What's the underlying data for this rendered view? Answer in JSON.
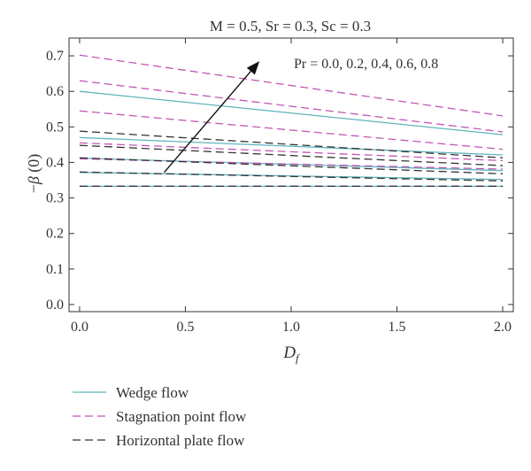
{
  "chart_data": {
    "type": "line",
    "title": "M = 0.5, Sr = 0.3, Sc = 0.3",
    "xlabel": "D",
    "xlabel_sub": "f",
    "ylabel_prefix": "−",
    "ylabel_symbol": "β",
    "ylabel_suffix": " (0)",
    "xlim": [
      -0.05,
      2.05
    ],
    "ylim": [
      -0.02,
      0.75
    ],
    "xticks": [
      "0.0",
      "0.5",
      "1.0",
      "1.5",
      "2.0"
    ],
    "yticks": [
      "0.0",
      "0.1",
      "0.2",
      "0.3",
      "0.4",
      "0.5",
      "0.6",
      "0.7"
    ],
    "grid": false,
    "legend_position": "bottom",
    "annotation": {
      "text": "Pr = 0.0, 0.2, 0.4, 0.6, 0.8",
      "arrow_from": [
        0.4,
        0.372
      ],
      "arrow_to": [
        0.85,
        0.685
      ]
    },
    "groups": [
      {
        "name": "Wedge flow",
        "color": "#5fb4bc",
        "dash": "solid",
        "series": [
          {
            "Pr": "0.0",
            "x": [
              0,
              2
            ],
            "y": [
              0.333,
              0.333
            ]
          },
          {
            "Pr": "0.2",
            "x": [
              0,
              2
            ],
            "y": [
              0.372,
              0.352
            ]
          },
          {
            "Pr": "0.4",
            "x": [
              0,
              2
            ],
            "y": [
              0.412,
              0.377
            ]
          },
          {
            "Pr": "0.6",
            "x": [
              0,
              2
            ],
            "y": [
              0.47,
              0.421
            ]
          },
          {
            "Pr": "0.8",
            "x": [
              0,
              2
            ],
            "y": [
              0.6,
              0.478
            ]
          }
        ]
      },
      {
        "name": "Stagnation point flow",
        "color": "#c455b5",
        "dash": "dashed",
        "series": [
          {
            "Pr": "0.0",
            "x": [
              0,
              2
            ],
            "y": [
              0.333,
              0.333
            ]
          },
          {
            "Pr": "0.2",
            "x": [
              0,
              2
            ],
            "y": [
              0.41,
              0.381
            ]
          },
          {
            "Pr": "0.4",
            "x": [
              0,
              2
            ],
            "y": [
              0.455,
              0.405
            ]
          },
          {
            "Pr": "0.6",
            "x": [
              0,
              2
            ],
            "y": [
              0.545,
              0.437
            ]
          },
          {
            "Pr": "0.8",
            "x": [
              0,
              2
            ],
            "y": [
              0.63,
              0.486
            ]
          },
          {
            "Pr": "",
            "x": [
              0,
              2
            ],
            "y": [
              0.702,
              0.531
            ]
          }
        ]
      },
      {
        "name": "Horizontal plate flow",
        "color": "#333333",
        "dash": "dashed",
        "series": [
          {
            "Pr": "0.0",
            "x": [
              0,
              2
            ],
            "y": [
              0.333,
              0.333
            ]
          },
          {
            "Pr": "0.2",
            "x": [
              0,
              2
            ],
            "y": [
              0.373,
              0.348
            ]
          },
          {
            "Pr": "0.4",
            "x": [
              0,
              2
            ],
            "y": [
              0.413,
              0.368
            ]
          },
          {
            "Pr": "0.6",
            "x": [
              0,
              2
            ],
            "y": [
              0.448,
              0.391
            ]
          },
          {
            "Pr": "0.8",
            "x": [
              0,
              2
            ],
            "y": [
              0.488,
              0.413
            ]
          }
        ]
      }
    ]
  }
}
